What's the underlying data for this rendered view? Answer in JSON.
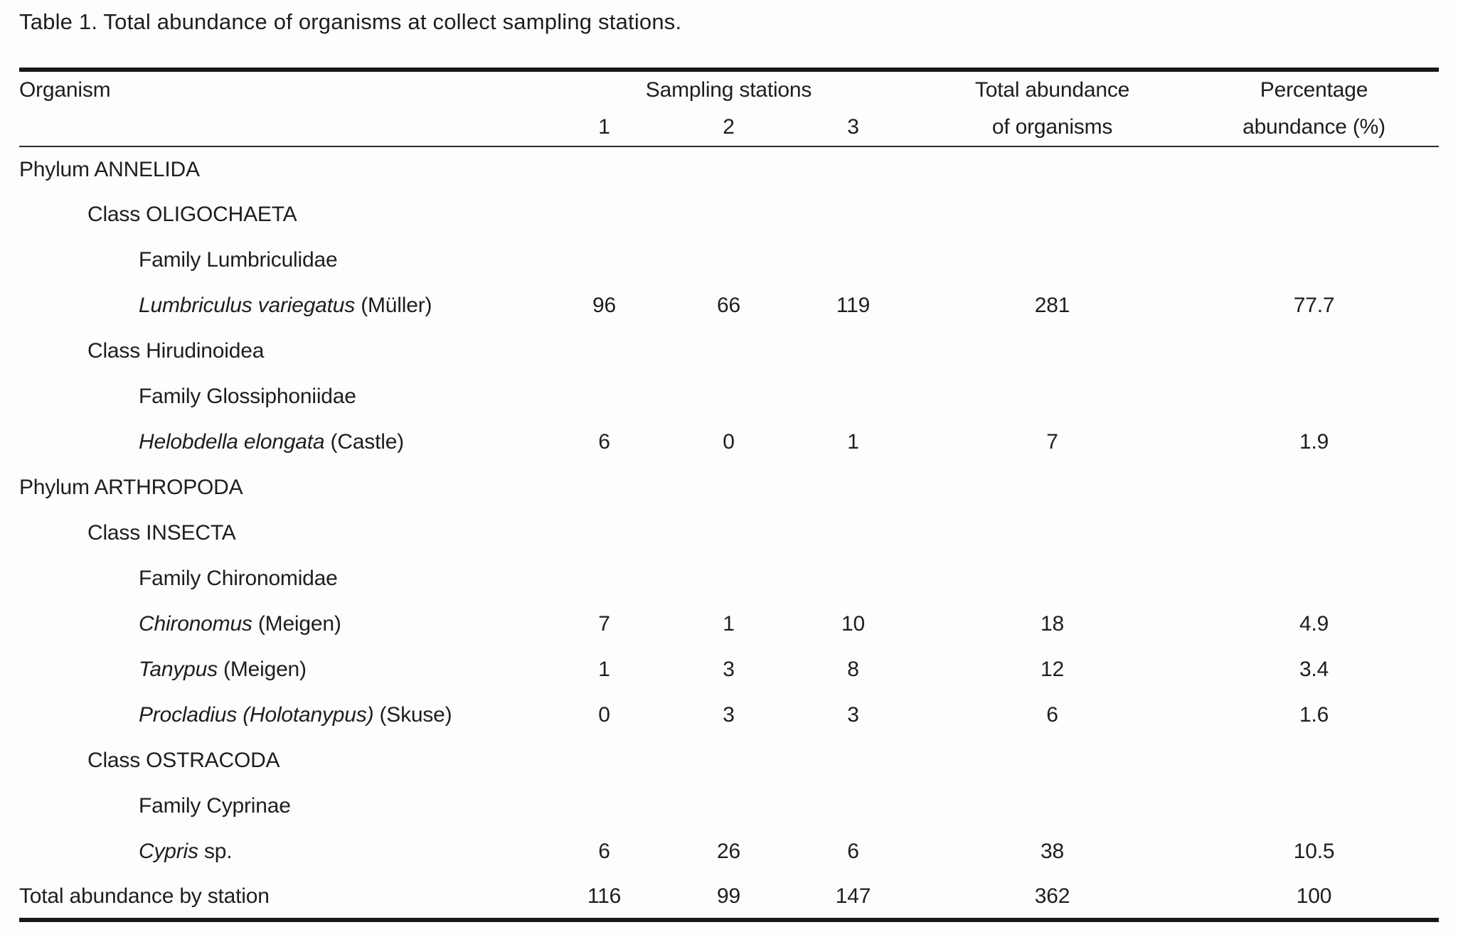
{
  "caption": "Table 1. Total abundance of organisms at collect sampling stations.",
  "header": {
    "organism": "Organism",
    "sampling_stations": "Sampling stations",
    "stations": [
      "1",
      "2",
      "3"
    ],
    "total_abundance": [
      "Total abundance",
      "of organisms"
    ],
    "percentage": [
      "Percentage",
      "abundance (%)"
    ]
  },
  "rows": [
    {
      "type": "phylum",
      "label": "Phylum ANNELIDA",
      "values": [
        "",
        "",
        "",
        "",
        ""
      ]
    },
    {
      "type": "class",
      "label": "Class OLIGOCHAETA",
      "values": [
        "",
        "",
        "",
        "",
        ""
      ]
    },
    {
      "type": "family",
      "label": "Family Lumbriculidae",
      "values": [
        "",
        "",
        "",
        "",
        ""
      ]
    },
    {
      "type": "species",
      "name_italic": "Lumbriculus variegatus",
      "name_regular": "(Müller)",
      "values": [
        "96",
        "66",
        "119",
        "281",
        "77.7"
      ]
    },
    {
      "type": "class",
      "label": "Class Hirudinoidea",
      "values": [
        "",
        "",
        "",
        "",
        ""
      ]
    },
    {
      "type": "family",
      "label": "Family Glossiphoniidae",
      "values": [
        "",
        "",
        "",
        "",
        ""
      ]
    },
    {
      "type": "species",
      "name_italic": "Helobdella elongata",
      "name_regular": "(Castle)",
      "values": [
        "6",
        "0",
        "1",
        "7",
        "1.9"
      ]
    },
    {
      "type": "phylum",
      "label": "Phylum ARTHROPODA",
      "values": [
        "",
        "",
        "",
        "",
        ""
      ]
    },
    {
      "type": "class",
      "label": "Class INSECTA",
      "values": [
        "",
        "",
        "",
        "",
        ""
      ]
    },
    {
      "type": "family",
      "label": "Family Chironomidae",
      "values": [
        "",
        "",
        "",
        "",
        ""
      ]
    },
    {
      "type": "species",
      "name_italic": "Chironomus",
      "name_regular": "(Meigen)",
      "values": [
        "7",
        "1",
        "10",
        "18",
        "4.9"
      ]
    },
    {
      "type": "species",
      "name_italic": "Tanypus",
      "name_regular": "(Meigen)",
      "values": [
        "1",
        "3",
        "8",
        "12",
        "3.4"
      ]
    },
    {
      "type": "species",
      "name_italic": "Procladius (Holotanypus)",
      "name_regular": "(Skuse)",
      "values": [
        "0",
        "3",
        "3",
        "6",
        "1.6"
      ]
    },
    {
      "type": "class",
      "label": "Class OSTRACODA",
      "values": [
        "",
        "",
        "",
        "",
        ""
      ]
    },
    {
      "type": "family",
      "label": "Family Cyprinae",
      "values": [
        "",
        "",
        "",
        "",
        ""
      ]
    },
    {
      "type": "species",
      "name_italic": "Cypris",
      "name_regular": "sp.",
      "values": [
        "6",
        "26",
        "6",
        "38",
        "10.5"
      ]
    },
    {
      "type": "total",
      "label": "Total abundance by station",
      "values": [
        "116",
        "99",
        "147",
        "362",
        "100"
      ]
    }
  ]
}
